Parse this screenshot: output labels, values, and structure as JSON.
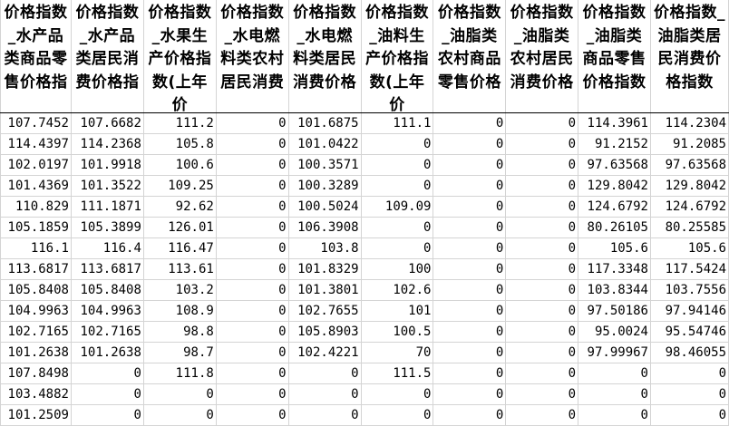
{
  "headers": [
    "价格指数_水产品类商品零售价格指",
    "价格指数_水产品类居民消费价格指",
    "价格指数_水果生产价格指数(上年价",
    "价格指数_水电燃料类农村居民消费",
    "价格指数_水电燃料类居民消费价格",
    "价格指数_油料生产价格指数(上年价",
    "价格指数_油脂类农村商品零售价格",
    "价格指数_油脂类农村居民消费价格",
    "价格指数_油脂类商品零售价格指数",
    "价格指数_油脂类居民消费价格指数"
  ],
  "rows": [
    [
      "107.7452",
      "107.6682",
      "111.2",
      "0",
      "101.6875",
      "111.1",
      "0",
      "0",
      "114.3961",
      "114.2304"
    ],
    [
      "114.4397",
      "114.2368",
      "105.8",
      "0",
      "101.0422",
      "0",
      "0",
      "0",
      "91.2152",
      "91.2085"
    ],
    [
      "102.0197",
      "101.9918",
      "100.6",
      "0",
      "100.3571",
      "0",
      "0",
      "0",
      "97.63568",
      "97.63568"
    ],
    [
      "101.4369",
      "101.3522",
      "109.25",
      "0",
      "100.3289",
      "0",
      "0",
      "0",
      "129.8042",
      "129.8042"
    ],
    [
      "110.829",
      "111.1871",
      "92.62",
      "0",
      "100.5024",
      "109.09",
      "0",
      "0",
      "124.6792",
      "124.6792"
    ],
    [
      "105.1859",
      "105.3899",
      "126.01",
      "0",
      "106.3908",
      "0",
      "0",
      "0",
      "80.26105",
      "80.25585"
    ],
    [
      "116.1",
      "116.4",
      "116.47",
      "0",
      "103.8",
      "0",
      "0",
      "0",
      "105.6",
      "105.6"
    ],
    [
      "113.6817",
      "113.6817",
      "113.61",
      "0",
      "101.8329",
      "100",
      "0",
      "0",
      "117.3348",
      "117.5424"
    ],
    [
      "105.8408",
      "105.8408",
      "103.2",
      "0",
      "101.3801",
      "102.6",
      "0",
      "0",
      "103.8344",
      "103.7556"
    ],
    [
      "104.9963",
      "104.9963",
      "108.9",
      "0",
      "102.7655",
      "101",
      "0",
      "0",
      "97.50186",
      "97.94146"
    ],
    [
      "102.7165",
      "102.7165",
      "98.8",
      "0",
      "105.8903",
      "100.5",
      "0",
      "0",
      "95.0024",
      "95.54746"
    ],
    [
      "101.2638",
      "101.2638",
      "98.7",
      "0",
      "102.4221",
      "70",
      "0",
      "0",
      "97.99967",
      "98.46055"
    ],
    [
      "107.8498",
      "0",
      "111.8",
      "0",
      "0",
      "111.5",
      "0",
      "0",
      "0",
      "0"
    ],
    [
      "103.4882",
      "0",
      "0",
      "0",
      "0",
      "0",
      "0",
      "0",
      "0",
      "0"
    ],
    [
      "101.2509",
      "0",
      "0",
      "0",
      "0",
      "0",
      "0",
      "0",
      "0",
      "0"
    ]
  ]
}
